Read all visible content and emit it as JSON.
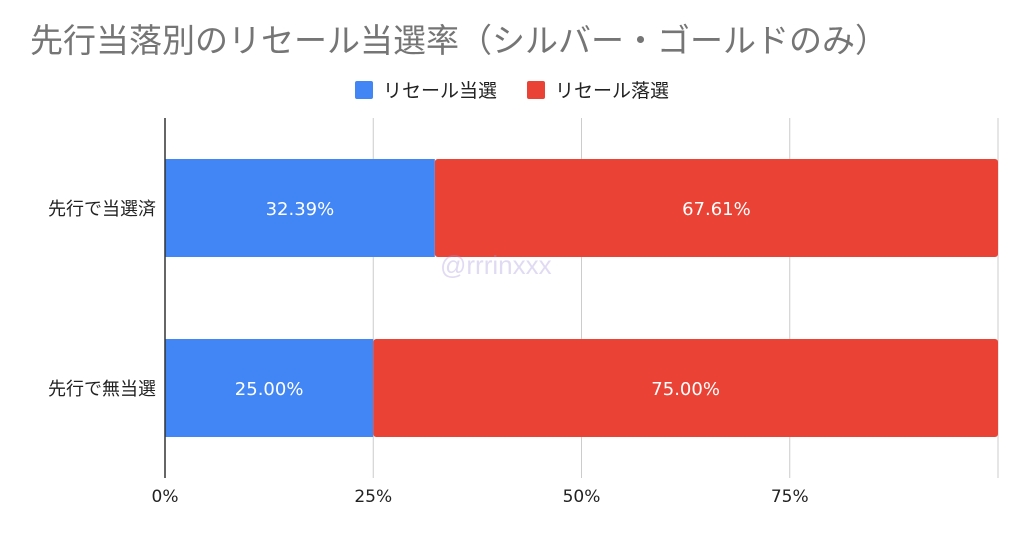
{
  "chart_data": {
    "type": "bar",
    "orientation": "horizontal",
    "stacked": true,
    "title": "先行当落別のリセール当選率（シルバー・ゴールドのみ）",
    "categories": [
      "先行で当選済",
      "先行で無当選"
    ],
    "series": [
      {
        "name": "リセール当選",
        "values": [
          32.39,
          25.0
        ],
        "labels": [
          "32.39%",
          "25.00%"
        ],
        "color": "#4285f4"
      },
      {
        "name": "リセール落選",
        "values": [
          67.61,
          75.0
        ],
        "labels": [
          "67.61%",
          "75.00%"
        ],
        "color": "#ea4335"
      }
    ],
    "xlim": [
      0,
      100
    ],
    "x_ticks": [
      "0%",
      "25%",
      "50%",
      "75%"
    ],
    "grid": true,
    "legend": "top-center"
  },
  "watermark": "@rrrinxxx"
}
